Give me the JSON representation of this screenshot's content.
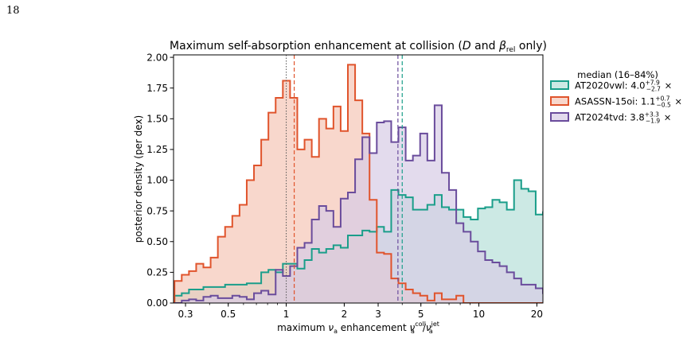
{
  "page": {
    "number": "18"
  },
  "chart_data": {
    "type": "histogram-step",
    "title": "Maximum self-absorption enhancement at collision (D and β_rel only)",
    "title_parts": {
      "prefix": "Maximum self-absorption enhancement at collision (",
      "D": "D",
      "and": " and ",
      "beta": "β",
      "rel": "rel",
      "suffix": " only)"
    },
    "xlabel": "maximum ν_a enhancement  ν_a^coll/ν_a^jet",
    "xlabel_parts": {
      "prefix": "maximum ",
      "nu": "ν",
      "a": "a",
      "mid": " enhancement  ",
      "coll": "coll",
      "slash": "/",
      "jet": "jet"
    },
    "ylabel": "posterior density (per dex)",
    "xscale": "log",
    "xlim": [
      0.26,
      21.5
    ],
    "ylim": [
      0,
      2.02
    ],
    "xticks": [
      0.3,
      0.5,
      1,
      2,
      3,
      5,
      10,
      20
    ],
    "xtick_labels": [
      "0.3",
      "0.5",
      "1",
      "2",
      "3",
      "5",
      "10",
      "20"
    ],
    "yticks": [
      0,
      0.25,
      0.5,
      0.75,
      1.0,
      1.25,
      1.5,
      1.75,
      2.0
    ],
    "ytick_labels": [
      "0.00",
      "0.25",
      "0.50",
      "0.75",
      "1.00",
      "1.25",
      "1.50",
      "1.75",
      "2.00"
    ],
    "legend": {
      "title": "median (16–84%)",
      "location": "right, outside"
    },
    "log_bin_edges_start": -0.58,
    "log_bin_width": 0.0375,
    "series": [
      {
        "name": "AT2020vwl",
        "legend_label": {
          "name": "AT2020vwl: 4.0",
          "sup": "+7.9",
          "sub": "−2.7",
          "tail": " ×"
        },
        "color": "#1a9e8a",
        "fill": "#b7e0d8",
        "median": 4.0,
        "values": [
          0.06,
          0.08,
          0.11,
          0.11,
          0.13,
          0.13,
          0.13,
          0.15,
          0.15,
          0.15,
          0.16,
          0.16,
          0.25,
          0.27,
          0.25,
          0.32,
          0.32,
          0.28,
          0.35,
          0.44,
          0.41,
          0.44,
          0.47,
          0.45,
          0.55,
          0.55,
          0.59,
          0.58,
          0.62,
          0.58,
          0.92,
          0.88,
          0.86,
          0.76,
          0.76,
          0.8,
          0.88,
          0.78,
          0.76,
          0.76,
          0.7,
          0.68,
          0.77,
          0.78,
          0.84,
          0.82,
          0.76,
          1.0,
          0.93,
          0.91,
          0.72,
          0.74,
          0.89,
          0.76,
          0.89,
          0.7,
          0.78,
          0.74,
          0.62,
          0.59,
          0.48,
          0.54,
          0.58,
          0.62,
          0.58,
          0.55,
          0.48,
          0.45
        ]
      },
      {
        "name": "ASASSN-15oi",
        "legend_label": {
          "name": "ASASSN-15oi: 1.1",
          "sup": "+0.7",
          "sub": "−0.5",
          "tail": " ×"
        },
        "color": "#e0542c",
        "fill": "#f5c6b6",
        "median": 1.1,
        "values": [
          0.18,
          0.23,
          0.26,
          0.32,
          0.29,
          0.37,
          0.54,
          0.62,
          0.71,
          0.8,
          1.0,
          1.12,
          1.33,
          1.55,
          1.67,
          1.81,
          1.67,
          1.25,
          1.33,
          1.19,
          1.5,
          1.42,
          1.6,
          1.4,
          1.94,
          1.65,
          1.38,
          0.84,
          0.41,
          0.4,
          0.2,
          0.16,
          0.11,
          0.08,
          0.06,
          0.02,
          0.08,
          0.03,
          0.03,
          0.06,
          0.0,
          0.0,
          0.0,
          0.0,
          0.0,
          0.0,
          0.0,
          0.0,
          0.0,
          0.0,
          0.0,
          0.0,
          0.0,
          0.0,
          0.0,
          0.0,
          0.0,
          0.0,
          0.0,
          0.0,
          0.0,
          0.0,
          0.0,
          0.0,
          0.0,
          0.0,
          0.0,
          0.0
        ]
      },
      {
        "name": "AT2024tvd",
        "legend_label": {
          "name": "AT2024tvd: 3.8",
          "sup": "+3.3",
          "sub": "−1.9",
          "tail": " ×"
        },
        "color": "#6a4c9c",
        "fill": "#d7cce6",
        "median": 3.8,
        "values": [
          0.0,
          0.02,
          0.03,
          0.02,
          0.05,
          0.06,
          0.04,
          0.04,
          0.06,
          0.05,
          0.03,
          0.08,
          0.1,
          0.07,
          0.27,
          0.22,
          0.3,
          0.45,
          0.49,
          0.68,
          0.79,
          0.75,
          0.62,
          0.85,
          0.9,
          1.17,
          1.35,
          1.22,
          1.47,
          1.48,
          1.31,
          1.43,
          1.16,
          1.2,
          1.38,
          1.16,
          1.61,
          1.06,
          0.92,
          0.65,
          0.58,
          0.5,
          0.42,
          0.35,
          0.33,
          0.3,
          0.25,
          0.2,
          0.15,
          0.15,
          0.12,
          0.08,
          0.05,
          0.07,
          0.05,
          0.03,
          0.02,
          0.02,
          0.0,
          0.0,
          0.0,
          0.0,
          0.0,
          0.0,
          0.0,
          0.0,
          0.0,
          0.0
        ]
      }
    ]
  }
}
